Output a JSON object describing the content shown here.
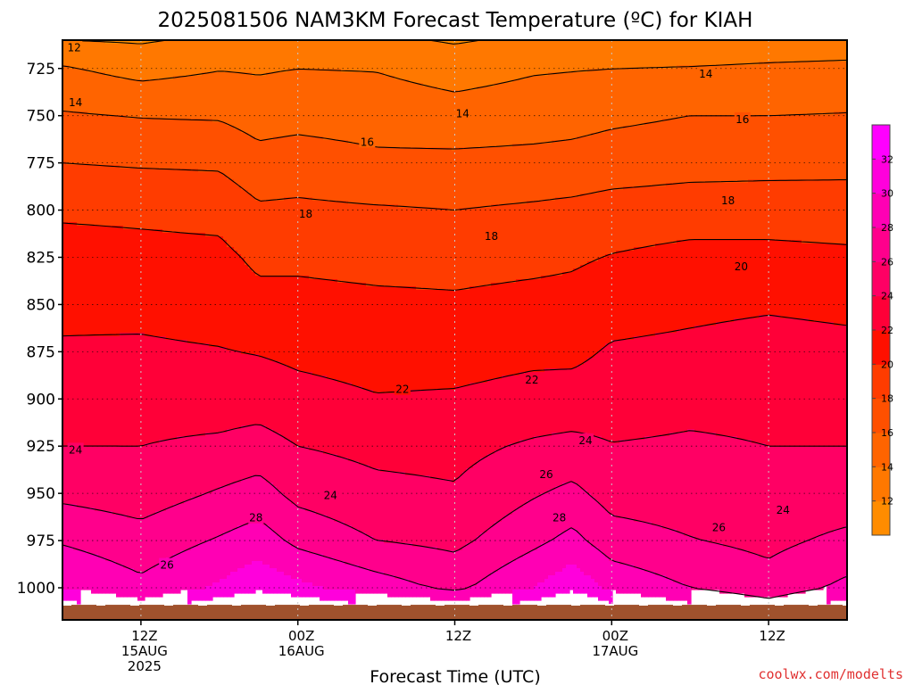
{
  "chart_data": {
    "type": "heatmap",
    "title": "2025081506 NAM3KM Forecast Temperature (ºC) for KIAH",
    "xlabel": "Forecast Time (UTC)",
    "ylabel": "",
    "credit": "coolwx.com/modelts",
    "y_axis": {
      "unit": "hPa",
      "inverted": true,
      "range": [
        710,
        1017
      ],
      "ticks": [
        725,
        750,
        775,
        800,
        825,
        850,
        875,
        900,
        925,
        950,
        975,
        1000
      ]
    },
    "x_axis": {
      "range_hours": [
        6,
        66
      ],
      "ticks": [
        {
          "hour": 12,
          "lines": [
            "12Z",
            "15AUG",
            "2025"
          ]
        },
        {
          "hour": 24,
          "lines": [
            "00Z",
            "16AUG"
          ]
        },
        {
          "hour": 36,
          "lines": [
            "12Z"
          ]
        },
        {
          "hour": 48,
          "lines": [
            "00Z",
            "17AUG"
          ]
        },
        {
          "hour": 60,
          "lines": [
            "12Z"
          ]
        }
      ]
    },
    "grid": true,
    "ground_level_hpa": 1009,
    "colorbar": {
      "levels": [
        10,
        12,
        14,
        16,
        18,
        20,
        22,
        24,
        26,
        28,
        30,
        32,
        34
      ],
      "labels": [
        12,
        14,
        16,
        18,
        20,
        22,
        24,
        26,
        28,
        30,
        32
      ],
      "colors": [
        "#ff8c00",
        "#ff7800",
        "#ff6400",
        "#ff5000",
        "#ff3c00",
        "#ff1000",
        "#ff0038",
        "#ff0064",
        "#ff008c",
        "#ff00b4",
        "#ff00dc",
        "#ff00ff"
      ]
    },
    "isotherms": [
      {
        "value": 12,
        "label_points": [
          [
            6.9,
            714
          ]
        ]
      },
      {
        "value": 14,
        "label_points": [
          [
            7.0,
            743
          ],
          [
            36.6,
            749
          ],
          [
            55.2,
            728
          ]
        ]
      },
      {
        "value": 16,
        "label_points": [
          [
            29.3,
            764
          ],
          [
            58.0,
            752
          ]
        ]
      },
      {
        "value": 18,
        "label_points": [
          [
            24.6,
            802
          ],
          [
            38.8,
            814
          ],
          [
            56.9,
            795
          ]
        ]
      },
      {
        "value": 20,
        "label_points": [
          [
            57.9,
            830
          ]
        ]
      },
      {
        "value": 22,
        "label_points": [
          [
            32.0,
            895
          ],
          [
            41.9,
            890
          ]
        ]
      },
      {
        "value": 24,
        "label_points": [
          [
            7.0,
            927
          ],
          [
            26.5,
            951
          ],
          [
            46.0,
            922
          ],
          [
            61.1,
            959
          ]
        ]
      },
      {
        "value": 26,
        "label_points": [
          [
            14.0,
            988
          ],
          [
            43.0,
            940
          ],
          [
            56.2,
            968
          ]
        ]
      },
      {
        "value": 28,
        "label_points": [
          [
            20.8,
            963
          ],
          [
            44.0,
            963
          ]
        ]
      }
    ],
    "profiles": [
      {
        "hour": 6,
        "t": {
          "1008": 32.5,
          "1000": 30.0,
          "975": 27.8,
          "950": 25.5,
          "925": 24.0,
          "900": 23.2,
          "875": 22.2,
          "850": 21.6,
          "825": 20.8,
          "800": 19.7,
          "775": 18.0,
          "750": 16.2,
          "725": 14.2,
          "710": 12.0
        }
      },
      {
        "hour": 12,
        "t": {
          "1008": 30.5,
          "1000": 28.5,
          "975": 26.8,
          "950": 25.0,
          "925": 24.0,
          "900": 23.2,
          "875": 22.3,
          "850": 21.5,
          "825": 20.6,
          "800": 19.6,
          "775": 17.8,
          "750": 15.9,
          "725": 13.3,
          "710": 11.8
        }
      },
      {
        "hour": 18,
        "t": {
          "1008": 33.0,
          "1000": 30.3,
          "975": 28.2,
          "950": 26.2,
          "925": 24.4,
          "900": 23.0,
          "875": 22.1,
          "850": 21.2,
          "825": 20.5,
          "800": 19.4,
          "775": 17.7,
          "750": 15.8,
          "725": 13.9,
          "710": 12.4
        }
      },
      {
        "hour": 21,
        "t": {
          "1008": 34.0,
          "1000": 31.5,
          "975": 29.0,
          "950": 26.8,
          "925": 24.8,
          "900": 23.1,
          "875": 21.9,
          "850": 20.6,
          "825": 19.6,
          "800": 18.3,
          "775": 16.7,
          "750": 15.2,
          "725": 13.8,
          "710": 12.5
        }
      },
      {
        "hour": 24,
        "t": {
          "1008": 33.3,
          "1000": 30.5,
          "975": 27.5,
          "950": 25.4,
          "925": 24.0,
          "900": 22.6,
          "875": 21.6,
          "850": 20.6,
          "825": 19.6,
          "800": 18.4,
          "775": 16.9,
          "750": 15.4,
          "725": 14.0,
          "710": 12.6
        }
      },
      {
        "hour": 30,
        "t": {
          "1008": 31.5,
          "1000": 29.0,
          "975": 26.0,
          "950": 24.5,
          "925": 23.5,
          "900": 22.1,
          "875": 21.3,
          "850": 20.4,
          "825": 19.4,
          "800": 18.2,
          "775": 16.4,
          "750": 15.2,
          "725": 13.9,
          "710": 12.4
        }
      },
      {
        "hour": 36,
        "t": {
          "1008": 30.5,
          "1000": 27.5,
          "975": 25.5,
          "950": 24.2,
          "925": 23.4,
          "900": 22.2,
          "875": 21.3,
          "850": 20.3,
          "825": 19.3,
          "800": 18.0,
          "775": 16.5,
          "750": 14.8,
          "725": 13.2,
          "710": 11.8
        }
      },
      {
        "hour": 42,
        "t": {
          "1008": 32.5,
          "1000": 30.0,
          "975": 27.5,
          "950": 25.8,
          "925": 24.3,
          "900": 22.6,
          "875": 21.6,
          "850": 20.6,
          "825": 19.5,
          "800": 18.3,
          "775": 16.6,
          "750": 15.1,
          "725": 13.8,
          "710": 12.4
        }
      },
      {
        "hour": 45,
        "t": {
          "1008": 34.0,
          "1000": 31.5,
          "975": 28.6,
          "950": 26.5,
          "925": 24.6,
          "900": 22.7,
          "875": 21.6,
          "850": 20.7,
          "825": 19.7,
          "800": 18.5,
          "775": 16.7,
          "750": 15.3,
          "725": 13.9,
          "710": 12.3
        }
      },
      {
        "hour": 48,
        "t": {
          "1008": 32.0,
          "1000": 29.5,
          "975": 26.9,
          "950": 25.2,
          "925": 24.1,
          "900": 22.9,
          "875": 22.2,
          "850": 21.3,
          "825": 20.1,
          "800": 18.8,
          "775": 17.0,
          "750": 15.6,
          "725": 14.0,
          "710": 12.5
        }
      },
      {
        "hour": 54,
        "t": {
          "1008": 30.0,
          "1000": 28.0,
          "975": 26.1,
          "950": 25.0,
          "925": 24.3,
          "900": 23.4,
          "875": 22.4,
          "850": 21.6,
          "825": 20.6,
          "800": 19.0,
          "775": 17.3,
          "750": 16.0,
          "725": 14.1,
          "710": 12.6
        }
      },
      {
        "hour": 60,
        "t": {
          "1008": 28.5,
          "1000": 26.8,
          "975": 25.5,
          "950": 24.6,
          "925": 24.0,
          "900": 23.4,
          "875": 22.7,
          "850": 21.8,
          "825": 20.6,
          "800": 19.0,
          "775": 17.4,
          "750": 16.0,
          "725": 14.3,
          "710": 12.8
        }
      },
      {
        "hour": 66,
        "t": {
          "1008": 30.5,
          "1000": 28.5,
          "975": 26.5,
          "950": 24.8,
          "925": 24.0,
          "900": 23.2,
          "875": 22.5,
          "850": 21.6,
          "825": 20.4,
          "800": 18.9,
          "775": 17.5,
          "750": 16.1,
          "725": 14.5,
          "710": 12.8
        }
      }
    ]
  }
}
